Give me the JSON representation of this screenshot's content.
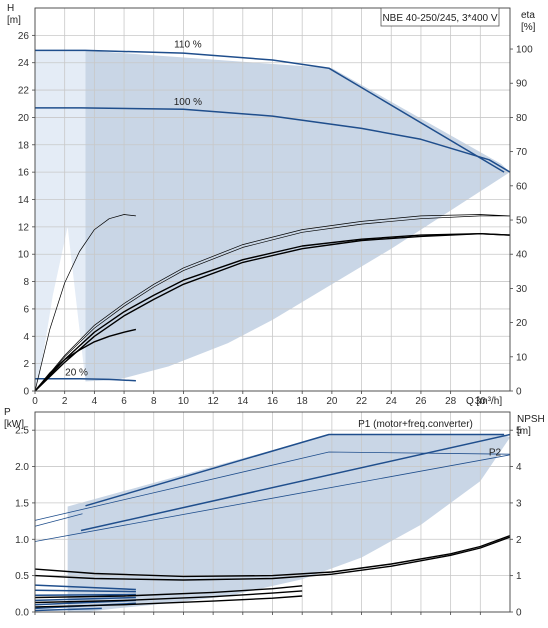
{
  "chart_data": [
    {
      "type": "line",
      "title": "NBE 40-250/245, 3*400 V",
      "y_label": [
        "H",
        "[m]"
      ],
      "y2_label": [
        "eta",
        "[%]"
      ],
      "x_label": "Q [m³/h]",
      "xlim": [
        0,
        32
      ],
      "ylim": [
        0,
        28
      ],
      "y2lim": [
        0,
        112
      ],
      "x_ticks": [
        0,
        2,
        4,
        6,
        8,
        10,
        12,
        14,
        16,
        18,
        20,
        22,
        24,
        26,
        28,
        30
      ],
      "y_ticks": [
        0,
        2,
        4,
        6,
        8,
        10,
        12,
        14,
        16,
        18,
        20,
        22,
        24,
        26
      ],
      "y2_ticks": [
        0,
        10,
        20,
        30,
        40,
        50,
        60,
        70,
        80,
        90,
        100
      ],
      "grid": true,
      "colors": {
        "curve": "#1f4e8c",
        "region": "#c9d6e6",
        "region_left": "#e4ecf6",
        "eta": "#000000"
      },
      "annotations": [
        {
          "text": "110 %",
          "x": 10.3,
          "y": 24.9
        },
        {
          "text": "100 %",
          "x": 10.3,
          "y": 20.7
        },
        {
          "text": "20 %",
          "x": 2.8,
          "y": 0.9
        }
      ],
      "region": {
        "x": [
          3.4,
          5.5,
          9,
          13,
          16,
          20,
          24,
          28,
          32,
          32,
          31.4,
          20,
          3.4
        ],
        "y": [
          0.7,
          0.8,
          1.8,
          3.5,
          5.2,
          7.8,
          10.4,
          13.2,
          16,
          16,
          16.6,
          23.6,
          24.9
        ]
      },
      "region_left": {
        "x": [
          0,
          0,
          3.4,
          3.4,
          2.2,
          1.2,
          0.3
        ],
        "y": [
          0,
          24.9,
          24.9,
          0.7,
          12,
          7,
          1
        ]
      },
      "series": [
        {
          "name": "110 %",
          "style": "pump",
          "x": [
            0,
            3.4,
            10,
            16,
            19.8,
            31.6
          ],
          "y": [
            24.9,
            24.9,
            24.7,
            24.2,
            23.6,
            16
          ]
        },
        {
          "name": "100 %",
          "style": "pump",
          "x": [
            0,
            3.1,
            10,
            16,
            22,
            26,
            30.6,
            32
          ],
          "y": [
            20.7,
            20.7,
            20.6,
            20.1,
            19.2,
            18.4,
            16.9,
            16
          ]
        },
        {
          "name": "20 %",
          "style": "pump",
          "x": [
            0,
            0.8,
            3,
            5,
            6.8
          ],
          "y": [
            0.9,
            0.9,
            0.9,
            0.85,
            0.75
          ]
        },
        {
          "name": "eta 1",
          "style": "eta-thin",
          "x": [
            0,
            1,
            2,
            3,
            4,
            5,
            6,
            6.8
          ],
          "y": [
            0,
            4.5,
            7.9,
            10.2,
            11.8,
            12.6,
            12.9,
            12.8
          ]
        },
        {
          "name": "eta 2",
          "style": "eta-thin",
          "x": [
            0,
            2,
            4,
            6,
            8,
            10,
            14,
            18,
            22,
            26,
            30,
            32
          ],
          "y": [
            0,
            2.6,
            4.8,
            6.4,
            7.8,
            9,
            10.7,
            11.8,
            12.4,
            12.8,
            12.9,
            12.8
          ]
        },
        {
          "name": "eta 3",
          "style": "eta-thin",
          "x": [
            0,
            2,
            4,
            6,
            8,
            10,
            14,
            18,
            22,
            26,
            30,
            32
          ],
          "y": [
            0,
            2.5,
            4.6,
            6.2,
            7.6,
            8.8,
            10.5,
            11.6,
            12.2,
            12.6,
            12.8,
            12.8
          ]
        },
        {
          "name": "eta 4",
          "style": "eta",
          "x": [
            0,
            2,
            4,
            6,
            8,
            10,
            14,
            18,
            22,
            26,
            30,
            32
          ],
          "y": [
            0,
            2.3,
            4.3,
            5.8,
            7,
            8.1,
            9.6,
            10.6,
            11.1,
            11.4,
            11.5,
            11.4
          ]
        },
        {
          "name": "eta 5",
          "style": "eta",
          "x": [
            0,
            2,
            4,
            6,
            8,
            10,
            14,
            18,
            22,
            26,
            30,
            32
          ],
          "y": [
            0,
            2.1,
            4,
            5.5,
            6.7,
            7.8,
            9.4,
            10.4,
            11,
            11.3,
            11.5,
            11.4
          ]
        },
        {
          "name": "eta 6",
          "style": "eta",
          "x": [
            0,
            1,
            2,
            3,
            4,
            5,
            6,
            6.8
          ],
          "y": [
            0,
            1.3,
            2.3,
            3,
            3.6,
            4,
            4.3,
            4.5
          ]
        }
      ]
    },
    {
      "type": "line",
      "y_label": [
        "P",
        "[kW]"
      ],
      "y2_label": [
        "NPSH",
        "[m]"
      ],
      "xlim": [
        0,
        32
      ],
      "ylim": [
        0,
        2.75
      ],
      "y2lim": [
        0,
        5.5
      ],
      "y_ticks": [
        0.0,
        0.5,
        1.0,
        1.5,
        2.0,
        2.5
      ],
      "y_tick_labels": [
        "0.0",
        "0.5",
        "1.0",
        "1.5",
        "2.0",
        "2.5"
      ],
      "y2_ticks": [
        0,
        1,
        2,
        3,
        4,
        5
      ],
      "grid": true,
      "annotations": [
        {
          "text": "P1 (motor+freq.converter)",
          "x": 29.5,
          "y": 2.5
        },
        {
          "text": "P2",
          "x": 31.4,
          "y": 2.11
        }
      ],
      "region": {
        "x": [
          2.2,
          19.8,
          31.6,
          32,
          30,
          26,
          22,
          18,
          13,
          9,
          5.5,
          3.4,
          2.2
        ],
        "y": [
          1.45,
          2.44,
          2.44,
          2.4,
          1.8,
          1.2,
          0.75,
          0.45,
          0.22,
          0.12,
          0.05,
          0.0,
          0.0
        ]
      },
      "series": [
        {
          "name": "P1 (motor+freq.converter)",
          "style": "pump",
          "x": [
            3.4,
            19.8,
            31.6
          ],
          "y": [
            1.46,
            2.44,
            2.44
          ]
        },
        {
          "name": "P1 100 %",
          "style": "pump",
          "x": [
            3.1,
            32
          ],
          "y": [
            1.12,
            2.44
          ]
        },
        {
          "name": "P2",
          "style": "pump-thin",
          "x": [
            0,
            19.8,
            32
          ],
          "y": [
            1.26,
            2.2,
            2.17
          ]
        },
        {
          "name": "P2 100 %",
          "style": "pump-thin",
          "x": [
            0,
            32
          ],
          "y": [
            0.97,
            2.16
          ]
        },
        {
          "name": "P2 b",
          "style": "pump-thin",
          "x": [
            0,
            3.2
          ],
          "y": [
            1.18,
            1.35
          ]
        },
        {
          "name": "NPSH",
          "style": "eta",
          "x": [
            0,
            4,
            10,
            16,
            20,
            24,
            28,
            30,
            32
          ],
          "y": [
            0.59,
            0.53,
            0.49,
            0.5,
            0.55,
            0.66,
            0.8,
            0.9,
            1.05
          ]
        },
        {
          "name": "NPSH b",
          "style": "eta",
          "x": [
            0,
            4,
            10,
            16,
            20,
            24,
            28,
            30,
            32
          ],
          "y": [
            0.5,
            0.46,
            0.44,
            0.46,
            0.52,
            0.63,
            0.78,
            0.88,
            1.03
          ]
        },
        {
          "name": "low 1",
          "style": "pump",
          "x": [
            0,
            6.8
          ],
          "y": [
            0.37,
            0.31
          ]
        },
        {
          "name": "low 2",
          "style": "pump",
          "x": [
            0,
            6.8
          ],
          "y": [
            0.3,
            0.28
          ]
        },
        {
          "name": "low 3",
          "style": "pump",
          "x": [
            0,
            6.8
          ],
          "y": [
            0.23,
            0.24
          ]
        },
        {
          "name": "low 4",
          "style": "pump",
          "x": [
            0,
            6.8
          ],
          "y": [
            0.16,
            0.2
          ]
        },
        {
          "name": "low 5",
          "style": "pump",
          "x": [
            0,
            6.8
          ],
          "y": [
            0.1,
            0.16
          ]
        },
        {
          "name": "low 6",
          "style": "pump",
          "x": [
            0,
            6.8
          ],
          "y": [
            0.05,
            0.12
          ]
        },
        {
          "name": "low 7",
          "style": "pump",
          "x": [
            0,
            4.5
          ],
          "y": [
            0.02,
            0.05
          ]
        },
        {
          "name": "low black 1",
          "style": "eta",
          "x": [
            0,
            6,
            12,
            16,
            18
          ],
          "y": [
            0.2,
            0.22,
            0.27,
            0.32,
            0.36
          ]
        },
        {
          "name": "low black 2",
          "style": "eta",
          "x": [
            0,
            6,
            12,
            16,
            18
          ],
          "y": [
            0.13,
            0.16,
            0.21,
            0.26,
            0.29
          ]
        },
        {
          "name": "low black 3",
          "style": "eta",
          "x": [
            0,
            6,
            12,
            16,
            18
          ],
          "y": [
            0.07,
            0.1,
            0.15,
            0.19,
            0.22
          ]
        }
      ]
    }
  ]
}
